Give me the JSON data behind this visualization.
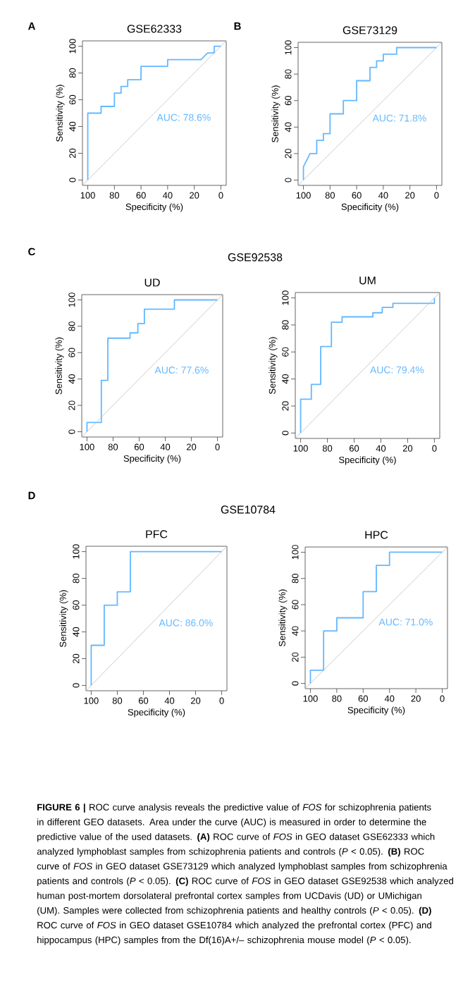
{
  "chart_data": [
    {
      "type": "line",
      "title": "GSE62333",
      "xlabel": "Specificity (%)",
      "ylabel": "Sensitivity (%)",
      "annotations": [
        "A",
        "AUC: 78.6%"
      ],
      "xlim": [
        104,
        -4
      ],
      "ylim": [
        -4,
        104
      ],
      "xticks": [
        100,
        80,
        60,
        40,
        20,
        0
      ],
      "yticks": [
        0,
        20,
        40,
        60,
        80,
        100
      ],
      "series": [
        {
          "color": "#63b8ff",
          "x": [
            100,
            100,
            90,
            90,
            80,
            80,
            75,
            75,
            70,
            70,
            60,
            60,
            40,
            40,
            15,
            10,
            5,
            5,
            0
          ],
          "values": [
            0,
            50,
            50,
            55,
            55,
            65,
            65,
            70,
            70,
            75,
            75,
            85,
            85,
            90,
            90,
            95,
            95,
            100,
            100
          ]
        },
        {
          "color": "#bebebe",
          "x": [
            104,
            -4
          ],
          "values": [
            -4,
            104
          ]
        }
      ]
    },
    {
      "type": "line",
      "title": "GSE73129",
      "xlabel": "Specificity (%)",
      "ylabel": "Sensitivity (%)",
      "annotations": [
        "B",
        "AUC: 71.8%"
      ],
      "xlim": [
        104,
        -4
      ],
      "ylim": [
        -4,
        104
      ],
      "xticks": [
        100,
        80,
        60,
        40,
        20,
        0
      ],
      "yticks": [
        0,
        20,
        40,
        60,
        80,
        100
      ],
      "series": [
        {
          "color": "#63b8ff",
          "x": [
            100,
            100,
            95,
            90,
            90,
            85,
            85,
            80,
            80,
            70,
            70,
            60,
            60,
            50,
            50,
            45,
            45,
            40,
            40,
            30,
            30,
            0
          ],
          "values": [
            0,
            10,
            20,
            20,
            30,
            30,
            35,
            35,
            50,
            50,
            60,
            60,
            75,
            75,
            85,
            85,
            90,
            90,
            95,
            95,
            100,
            100
          ]
        },
        {
          "color": "#bebebe",
          "x": [
            104,
            -4
          ],
          "values": [
            -4,
            104
          ]
        }
      ]
    },
    {
      "type": "line",
      "title": "UD",
      "subtitle": "GSE92538",
      "xlabel": "Specificity (%)",
      "ylabel": "Sensitivity (%)",
      "annotations": [
        "C",
        "AUC: 77.6%"
      ],
      "xlim": [
        104,
        -4
      ],
      "ylim": [
        -4,
        104
      ],
      "xticks": [
        100,
        80,
        60,
        40,
        20,
        0
      ],
      "yticks": [
        0,
        20,
        40,
        60,
        80,
        100
      ],
      "series": [
        {
          "color": "#63b8ff",
          "x": [
            100,
            100,
            89,
            89,
            84,
            84,
            67,
            67,
            61,
            61,
            56,
            56,
            33,
            33,
            0
          ],
          "values": [
            0,
            7,
            7,
            39,
            39,
            71,
            71,
            75,
            75,
            82,
            82,
            93,
            93,
            100,
            100
          ]
        },
        {
          "color": "#bebebe",
          "x": [
            104,
            -4
          ],
          "values": [
            -4,
            104
          ]
        }
      ]
    },
    {
      "type": "line",
      "title": "UM",
      "xlabel": "Specificity (%)",
      "ylabel": "Sensitivity (%)",
      "annotations": [
        "AUC: 79.4%"
      ],
      "xlim": [
        104,
        -4
      ],
      "ylim": [
        -4,
        104
      ],
      "xticks": [
        100,
        80,
        60,
        40,
        20,
        0
      ],
      "yticks": [
        0,
        20,
        40,
        60,
        80,
        100
      ],
      "series": [
        {
          "color": "#63b8ff",
          "x": [
            100,
            100,
            92,
            92,
            85,
            85,
            77,
            77,
            69,
            69,
            46,
            46,
            39,
            39,
            31,
            31,
            0,
            0
          ],
          "values": [
            0,
            25,
            25,
            36,
            36,
            64,
            64,
            82,
            82,
            86,
            86,
            89,
            89,
            93,
            93,
            96,
            96,
            100
          ]
        },
        {
          "color": "#bebebe",
          "x": [
            104,
            -4
          ],
          "values": [
            -4,
            104
          ]
        }
      ]
    },
    {
      "type": "line",
      "title": "PFC",
      "subtitle": "GSE10784",
      "xlabel": "Specificity (%)",
      "ylabel": "Sensitivity (%)",
      "annotations": [
        "D",
        "AUC: 86.0%"
      ],
      "xlim": [
        104,
        -4
      ],
      "ylim": [
        -4,
        104
      ],
      "xticks": [
        100,
        80,
        60,
        40,
        20,
        0
      ],
      "yticks": [
        0,
        20,
        40,
        60,
        80,
        100
      ],
      "series": [
        {
          "color": "#63b8ff",
          "x": [
            100,
            100,
            90,
            90,
            80,
            80,
            70,
            70,
            0
          ],
          "values": [
            0,
            30,
            30,
            60,
            60,
            70,
            70,
            100,
            100
          ]
        },
        {
          "color": "#bebebe",
          "x": [
            104,
            -4
          ],
          "values": [
            -4,
            104
          ]
        }
      ]
    },
    {
      "type": "line",
      "title": "HPC",
      "xlabel": "Specificity (%)",
      "ylabel": "Sensitivity (%)",
      "annotations": [
        "AUC: 71.0%",
        "**FIGURE 6 |** ROC curve analysis reveals the predictive value of *FOS* for schizophrenia patients in different GEO datasets. Area under the curve (AUC) is measured in order to determine the predictive value of the used datasets. **(A)** ROC curve of *FOS* in GEO dataset GSE62333 which analyzed lymphoblast samples from schizophrenia patients and controls (*P* < 0.05). **(B)** ROC curve of *FOS* in GEO dataset GSE73129 which analyzed lymphoblast samples from schizophrenia patients and controls (*P* < 0.05). **(C)** ROC curve of *FOS* in GEO dataset GSE92538 which analyzed human post-mortem dorsolateral prefrontal cortex samples from UCDavis (UD) or UMichigan (UM). Samples were collected from schizophrenia patients and healthy controls (*P* < 0.05). **(D)** ROC curve of *FOS* in GEO dataset GSE10784 which analyzed the prefrontal cortex (PFC) and hippocampus (HPC) samples from the Df(16)A+/– schizophrenia mouse model (*P* < 0.05)."
      ],
      "xlim": [
        104,
        -4
      ],
      "ylim": [
        -4,
        104
      ],
      "xticks": [
        100,
        80,
        60,
        40,
        20,
        0
      ],
      "yticks": [
        0,
        20,
        40,
        60,
        80,
        100
      ],
      "series": [
        {
          "color": "#63b8ff",
          "x": [
            100,
            100,
            90,
            90,
            80,
            80,
            60,
            60,
            50,
            50,
            40,
            40,
            0
          ],
          "values": [
            0,
            10,
            10,
            40,
            40,
            50,
            50,
            70,
            70,
            90,
            90,
            100,
            100
          ]
        },
        {
          "color": "#bebebe",
          "x": [
            104,
            -4
          ],
          "values": [
            -4,
            104
          ]
        }
      ]
    }
  ]
}
